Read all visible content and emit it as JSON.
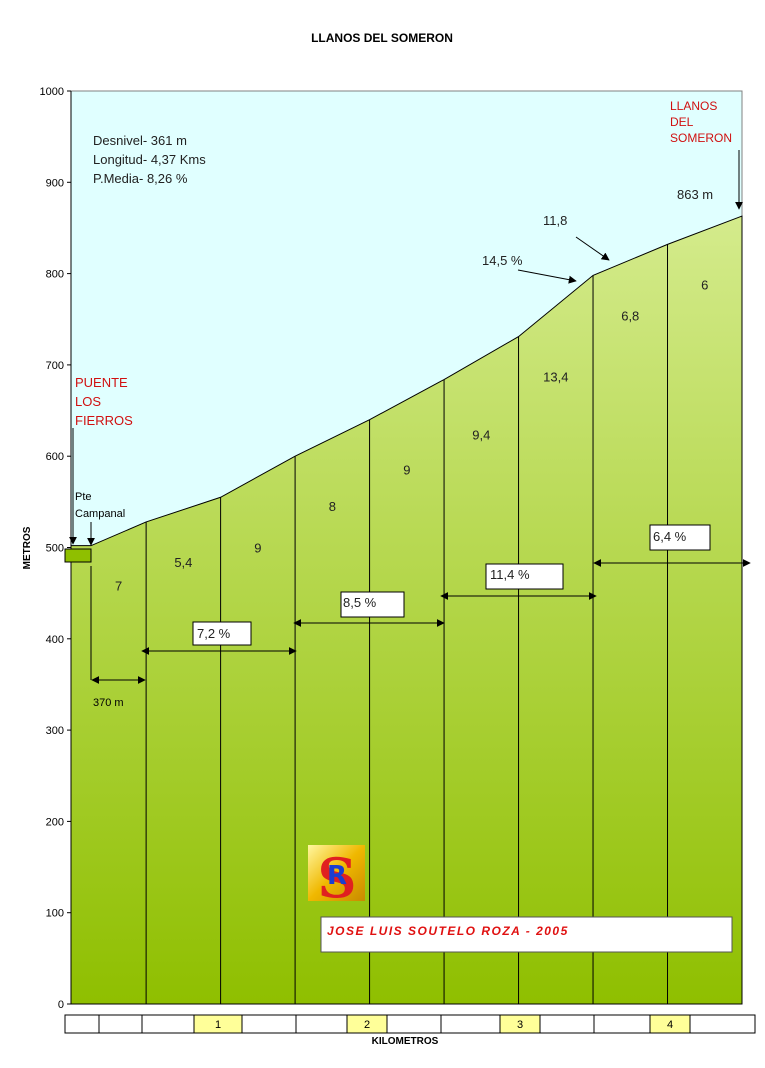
{
  "chart_data": {
    "type": "area",
    "title": "LLANOS DEL SOMERON",
    "xlabel": "KILOMETROS",
    "ylabel": "METROS",
    "ylim": [
      0,
      1000
    ],
    "y_ticks": [
      "0",
      "100",
      "200",
      "300",
      "400",
      "500",
      "600",
      "700",
      "800",
      "900",
      "1000"
    ],
    "xlim_km": [
      -0.37,
      4.37
    ],
    "profile": {
      "x_km": [
        0,
        0.37,
        0.87,
        1.37,
        1.87,
        2.37,
        2.87,
        3.37,
        3.87,
        4.37
      ],
      "y_m": [
        502,
        528,
        555,
        600,
        640,
        684,
        731,
        798,
        832,
        863
      ]
    },
    "segment_gradients": [
      "7",
      "5,4",
      "9",
      "8",
      "9",
      "9,4",
      "13,4",
      "6,8",
      "6"
    ],
    "km_boxes": [
      "1",
      "2",
      "3",
      "4"
    ],
    "stats": [
      "Desnivel- 361 m",
      "Longitud- 4,37 Kms",
      "P.Media- 8,26 %"
    ],
    "start_label": [
      "PUENTE",
      "LOS",
      "FIERROS"
    ],
    "start_sublabel": [
      "Pte",
      "Campanal"
    ],
    "end_label": [
      "LLANOS",
      "DEL",
      "SOMERON"
    ],
    "end_altitude": "863 m",
    "max_grads": [
      "11,8",
      "14,5 %"
    ],
    "span_370": "370 m",
    "range_avgs": [
      "7,2 %",
      "8,5 %",
      "11,4 %",
      "6,4 %"
    ],
    "author": "JOSE LUIS SOUTELO ROZA - 2005",
    "logo_letters": [
      "S",
      "R"
    ],
    "colors": {
      "sky": "#e0ffff",
      "ground_top": "#d4eb8c",
      "ground_bottom": "#8fbf00",
      "start_box": "#8fbf00",
      "km_box": "#ffff99",
      "red_text": "#d01010"
    }
  }
}
